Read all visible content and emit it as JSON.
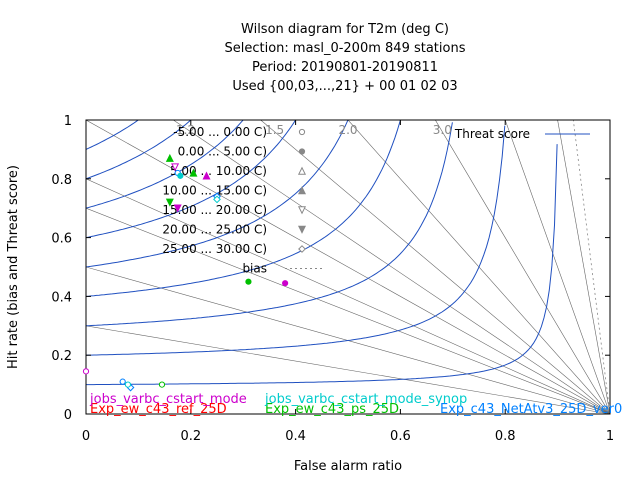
{
  "chart_data": {
    "type": "scatter",
    "title": [
      "Wilson diagram  for T2m (deg C)",
      "Selection: masl_0-200m    849 stations",
      "Period: 20190801-20190811",
      "Used {00,03,...,21} + 00 01 02 03"
    ],
    "xlabel": "False alarm ratio",
    "ylabel": "Hit rate (bias and Threat score)",
    "xlim": [
      0,
      1
    ],
    "ylim": [
      0,
      1
    ],
    "xticks": [
      "0",
      "0.2",
      "0.4",
      "0.6",
      "0.8",
      "1"
    ],
    "yticks": [
      "0",
      "0.2",
      "0.4",
      "0.6",
      "0.8",
      "1"
    ],
    "bias_labels": [
      "1.2",
      "1.5",
      "2.0",
      "3.0"
    ],
    "bias_values": [
      0.3,
      0.5,
      0.7,
      0.8,
      1.0,
      1.2,
      1.5,
      2.0,
      3.0,
      5.0,
      10.0
    ],
    "threat_values": [
      0.1,
      0.2,
      0.3,
      0.4,
      0.5,
      0.6,
      0.7,
      0.8,
      0.9
    ],
    "legend": {
      "threat_score": "Threat score",
      "bias": "bias",
      "classes": [
        {
          "label": "-5.00 ...  0.00 C)",
          "marker": "circle-open"
        },
        {
          "label": "0.00 ...  5.00 C)",
          "marker": "circle-filled"
        },
        {
          "label": "5.00 ... 10.00 C)",
          "marker": "triangle-open"
        },
        {
          "label": "10.00 ... 15.00 C)",
          "marker": "triangle-filled"
        },
        {
          "label": "15.00 ... 20.00 C)",
          "marker": "triangle-down-open"
        },
        {
          "label": "20.00 ... 25.00 C)",
          "marker": "triangle-down-filled"
        },
        {
          "label": "25.00 ... 30.00 C)",
          "marker": "diamond-open"
        }
      ]
    },
    "series": [
      {
        "name": "Exp_ew_c43_ref_25D",
        "color": "#ff0000",
        "points": []
      },
      {
        "name": "Exp_ew_c43_ps_25D",
        "color": "#00c000",
        "points": [
          {
            "x": 0.145,
            "y": 0.1,
            "marker": "circle-open"
          },
          {
            "x": 0.31,
            "y": 0.45,
            "marker": "circle-filled"
          },
          {
            "x": 0.16,
            "y": 0.87,
            "marker": "triangle-filled"
          },
          {
            "x": 0.205,
            "y": 0.82,
            "marker": "triangle-filled"
          },
          {
            "x": 0.16,
            "y": 0.72,
            "marker": "triangle-down-filled"
          }
        ]
      },
      {
        "name": "Exp_c43_NetAtv3_25D_ver0",
        "color": "#0080ff",
        "points": [
          {
            "x": 0.07,
            "y": 0.11,
            "marker": "circle-open"
          },
          {
            "x": 0.085,
            "y": 0.09,
            "marker": "diamond-open"
          },
          {
            "x": 0.175,
            "y": 0.82,
            "marker": "circle-open"
          },
          {
            "x": 0.25,
            "y": 0.74,
            "marker": "diamond-open"
          }
        ]
      },
      {
        "name": "jobs_varbc_cstart_mode",
        "color": "#cc00cc",
        "points": [
          {
            "x": 0.0,
            "y": 0.145,
            "marker": "circle-open"
          },
          {
            "x": 0.38,
            "y": 0.445,
            "marker": "circle-filled"
          },
          {
            "x": 0.23,
            "y": 0.81,
            "marker": "triangle-filled"
          },
          {
            "x": 0.17,
            "y": 0.84,
            "marker": "triangle-down-open"
          },
          {
            "x": 0.175,
            "y": 0.7,
            "marker": "triangle-down-filled"
          }
        ]
      },
      {
        "name": "jobs_varbc_cstart_mode_synop",
        "color": "#00cccc",
        "points": [
          {
            "x": 0.08,
            "y": 0.1,
            "marker": "circle-open"
          },
          {
            "x": 0.25,
            "y": 0.73,
            "marker": "diamond-open"
          },
          {
            "x": 0.18,
            "y": 0.81,
            "marker": "circle-filled"
          }
        ]
      }
    ]
  }
}
